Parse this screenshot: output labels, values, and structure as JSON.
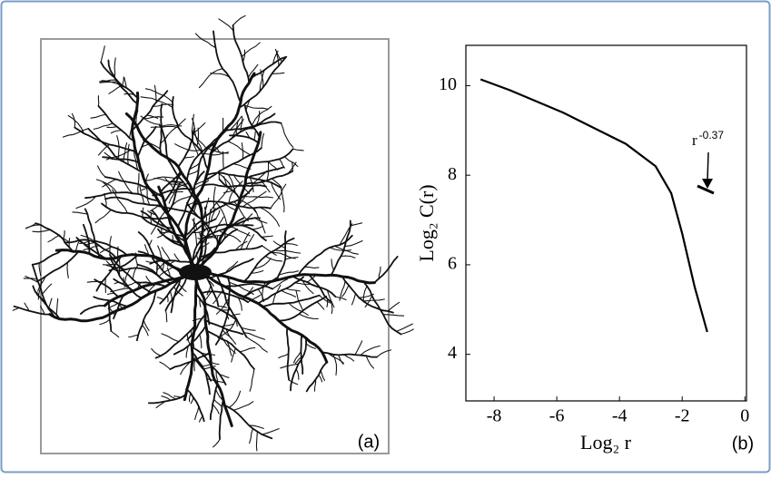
{
  "panel_a_label": "(a)",
  "chart_data": {
    "type": "line",
    "panel_label": "(b)",
    "x_label": "Log₂ r",
    "y_label": "Log₂ C(r)",
    "annotation": {
      "base": "r",
      "exponent": "-0.37"
    },
    "x": [
      -8.43,
      -7.5,
      -5.8,
      -3.8,
      -2.85,
      -2.35,
      -2.0,
      -1.6,
      -1.2
    ],
    "series": [
      {
        "color": "#000000",
        "values": [
          10.14,
          9.9,
          9.4,
          8.7,
          8.2,
          7.6,
          6.7,
          5.5,
          4.5
        ]
      }
    ],
    "xlim": [
      -8.9,
      0.05
    ],
    "ylim": [
      2.96,
      10.9
    ],
    "xticks": [
      -8,
      -6,
      -4,
      -2,
      0
    ],
    "yticks": [
      4,
      6,
      8,
      10
    ]
  }
}
